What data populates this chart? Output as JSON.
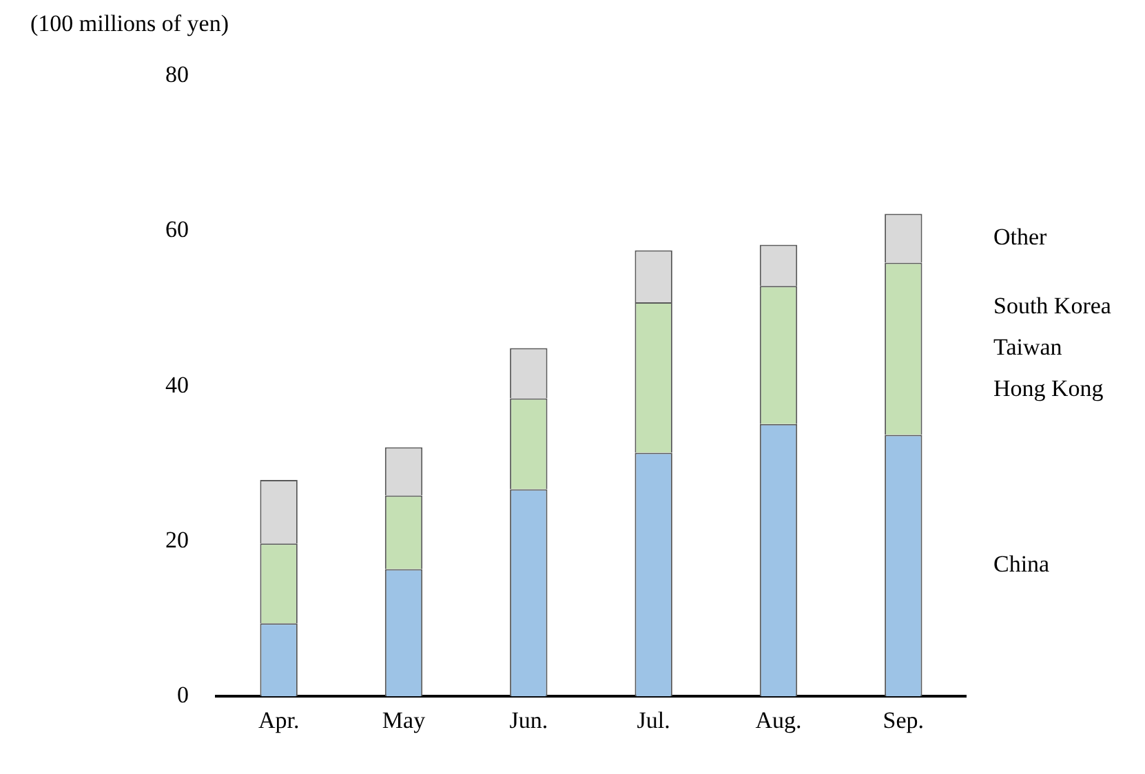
{
  "chart_data": {
    "type": "bar",
    "stacked": true,
    "ylabel": "(100 millions of yen)",
    "categories": [
      "Apr.",
      "May",
      "Jun.",
      "Jul.",
      "Aug.",
      "Sep."
    ],
    "series": [
      {
        "name": "China",
        "color": "#9dc3e6",
        "values": [
          9.4,
          16.4,
          26.7,
          31.4,
          35.1,
          33.7
        ]
      },
      {
        "name": "South Korea\nTaiwan\nHong Kong",
        "color": "#c5e0b4",
        "values": [
          10.3,
          9.5,
          11.7,
          19.4,
          17.8,
          22.2
        ]
      },
      {
        "name": "Other",
        "color": "#d9d9d9",
        "values": [
          8.2,
          6.2,
          6.5,
          6.7,
          5.3,
          6.3
        ]
      }
    ],
    "ylim": [
      0,
      80
    ],
    "yticks": [
      0,
      20,
      40,
      60,
      80
    ],
    "grid": false,
    "legend": false
  }
}
